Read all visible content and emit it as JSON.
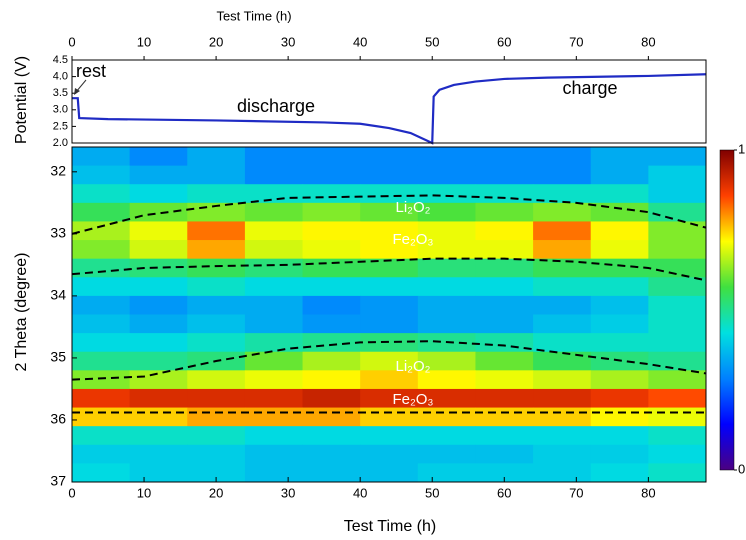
{
  "chart_data": [
    {
      "type": "line",
      "x_label": "Test Time (h)",
      "y_label": "Potential (V)",
      "xlim": [
        0,
        88
      ],
      "xticks": [
        0,
        10,
        20,
        30,
        40,
        50,
        60,
        70,
        80
      ],
      "ylim": [
        2.0,
        4.5
      ],
      "yticks": [
        {
          "value": 2,
          "label": "2.0"
        },
        2.5,
        {
          "value": 3,
          "label": "3.0"
        },
        3.5,
        {
          "value": 4,
          "label": "4.0"
        },
        4.5
      ],
      "x": [
        0,
        0.8,
        1,
        5,
        20,
        35,
        40,
        44,
        47,
        49.5,
        50,
        50.2,
        51,
        53,
        56,
        60,
        66,
        80,
        88
      ],
      "series": [
        {
          "color": "#1f2bc4",
          "values": [
            3.35,
            3.35,
            2.75,
            2.72,
            2.68,
            2.62,
            2.58,
            2.45,
            2.3,
            2.05,
            2.0,
            3.4,
            3.6,
            3.75,
            3.85,
            3.93,
            3.97,
            4.02,
            4.07
          ]
        }
      ],
      "annotations": [
        "rest",
        "discharge",
        "charge"
      ]
    },
    {
      "type": "heatmap",
      "x_label": "Test Time (h)",
      "y_label": "2 Theta (degree)",
      "xlim": [
        0,
        88
      ],
      "xticks": [
        0,
        10,
        20,
        30,
        40,
        50,
        60,
        70,
        80
      ],
      "ylim": [
        31.6,
        37
      ],
      "yticks": [
        32,
        33,
        34,
        35,
        36,
        37
      ],
      "x_bins": [
        0,
        8,
        16,
        24,
        32,
        40,
        48,
        56,
        64,
        72,
        80,
        88
      ],
      "y_bins": [
        31.6,
        31.9,
        32.2,
        32.5,
        32.8,
        33.1,
        33.4,
        33.7,
        34.0,
        34.3,
        34.6,
        34.9,
        35.2,
        35.5,
        35.8,
        36.1,
        36.4,
        36.7,
        37.0
      ],
      "z": [
        [
          0.35,
          0.3,
          0.35,
          0.3,
          0.3,
          0.3,
          0.3,
          0.3,
          0.3,
          0.35,
          0.35
        ],
        [
          0.38,
          0.35,
          0.35,
          0.3,
          0.3,
          0.3,
          0.3,
          0.3,
          0.3,
          0.35,
          0.4
        ],
        [
          0.45,
          0.42,
          0.45,
          0.45,
          0.45,
          0.45,
          0.45,
          0.45,
          0.45,
          0.45,
          0.4
        ],
        [
          0.55,
          0.6,
          0.62,
          0.6,
          0.62,
          0.6,
          0.58,
          0.6,
          0.62,
          0.6,
          0.5
        ],
        [
          0.65,
          0.7,
          0.82,
          0.7,
          0.72,
          0.72,
          0.7,
          0.72,
          0.82,
          0.72,
          0.62
        ],
        [
          0.62,
          0.68,
          0.78,
          0.68,
          0.7,
          0.72,
          0.7,
          0.7,
          0.78,
          0.7,
          0.62
        ],
        [
          0.5,
          0.52,
          0.55,
          0.52,
          0.55,
          0.55,
          0.52,
          0.52,
          0.55,
          0.55,
          0.55
        ],
        [
          0.42,
          0.42,
          0.45,
          0.42,
          0.42,
          0.42,
          0.42,
          0.42,
          0.45,
          0.45,
          0.5
        ],
        [
          0.35,
          0.32,
          0.35,
          0.35,
          0.3,
          0.32,
          0.35,
          0.35,
          0.35,
          0.38,
          0.45
        ],
        [
          0.38,
          0.35,
          0.38,
          0.35,
          0.32,
          0.32,
          0.35,
          0.35,
          0.38,
          0.4,
          0.45
        ],
        [
          0.42,
          0.42,
          0.45,
          0.48,
          0.5,
          0.52,
          0.5,
          0.48,
          0.45,
          0.45,
          0.45
        ],
        [
          0.5,
          0.5,
          0.52,
          0.6,
          0.65,
          0.68,
          0.65,
          0.6,
          0.55,
          0.52,
          0.5
        ],
        [
          0.62,
          0.65,
          0.68,
          0.7,
          0.72,
          0.75,
          0.72,
          0.7,
          0.68,
          0.65,
          0.62
        ],
        [
          0.88,
          0.9,
          0.9,
          0.9,
          0.92,
          0.9,
          0.9,
          0.9,
          0.9,
          0.88,
          0.85
        ],
        [
          0.75,
          0.75,
          0.78,
          0.78,
          0.78,
          0.75,
          0.75,
          0.75,
          0.75,
          0.72,
          0.7
        ],
        [
          0.45,
          0.45,
          0.45,
          0.42,
          0.42,
          0.42,
          0.42,
          0.42,
          0.42,
          0.42,
          0.45
        ],
        [
          0.4,
          0.4,
          0.4,
          0.38,
          0.38,
          0.38,
          0.38,
          0.38,
          0.4,
          0.4,
          0.42
        ],
        [
          0.42,
          0.4,
          0.4,
          0.38,
          0.38,
          0.38,
          0.4,
          0.4,
          0.4,
          0.42,
          0.45
        ]
      ],
      "zlim": [
        0,
        1
      ],
      "zticks": [
        0,
        1
      ],
      "colormap": [
        "#4b0082",
        "#0000ff",
        "#0080ff",
        "#00e0e0",
        "#40e040",
        "#ffff00",
        "#ff4000",
        "#800000"
      ],
      "lines": [
        {
          "color": "#000000",
          "x": [
            0,
            10,
            20,
            30,
            40,
            50,
            60,
            70,
            80,
            88
          ],
          "y": [
            33.0,
            32.7,
            32.55,
            32.42,
            32.4,
            32.38,
            32.42,
            32.5,
            32.65,
            32.9
          ]
        },
        {
          "color": "#000000",
          "x": [
            0,
            10,
            20,
            30,
            40,
            50,
            60,
            70,
            80,
            88
          ],
          "y": [
            33.65,
            33.55,
            33.52,
            33.5,
            33.45,
            33.4,
            33.4,
            33.45,
            33.55,
            33.75
          ]
        },
        {
          "color": "#000000",
          "x": [
            0,
            10,
            20,
            30,
            40,
            50,
            60,
            70,
            80,
            88
          ],
          "y": [
            35.35,
            35.3,
            35.05,
            34.85,
            34.75,
            34.73,
            34.8,
            34.95,
            35.1,
            35.25
          ]
        },
        {
          "color": "#000000",
          "x": [
            0,
            88
          ],
          "y": [
            35.88,
            35.88
          ]
        }
      ],
      "annotations": [
        "Li₂O₂",
        "Fe₂O₃",
        "Li₂O₂",
        "Fe₂O₃"
      ]
    }
  ]
}
